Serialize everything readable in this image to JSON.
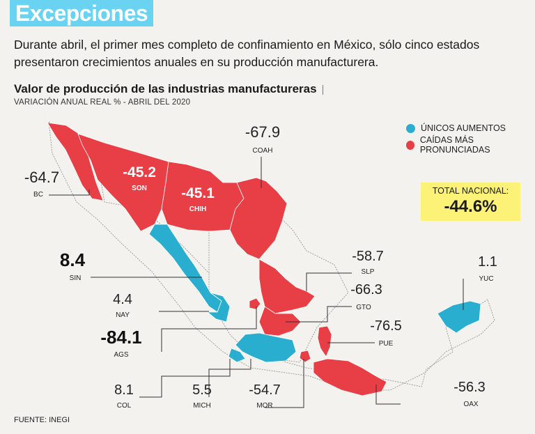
{
  "header": {
    "title": "Excepciones",
    "intro": "Durante abril, el primer mes completo de confinamiento en México, sólo cinco estados presentaron crecimientos anuales en su producción manufacturera."
  },
  "chart": {
    "title": "Valor de producción de las industrias manufactureras",
    "subtitle": "VARIACIÓN ANUAL REAL % - ABRIL DEL 2020",
    "source": "FUENTE: INEGI"
  },
  "legend": {
    "increase_label": "ÚNICOS AUMENTOS",
    "decrease_label": "CAÍDAS MÁS PRONUNCIADAS",
    "increase_color": "#2aaed0",
    "decrease_color": "#e83e45"
  },
  "total": {
    "label": "TOTAL NACIONAL:",
    "value": "-44.6%"
  },
  "states": {
    "bc": {
      "code": "BC",
      "value": "-64.7"
    },
    "son": {
      "code": "SON",
      "value": "-45.2"
    },
    "chih": {
      "code": "CHIH",
      "value": "-45.1"
    },
    "coah": {
      "code": "COAH",
      "value": "-67.9"
    },
    "sin": {
      "code": "SIN",
      "value": "8.4"
    },
    "nay": {
      "code": "NAY",
      "value": "4.4"
    },
    "ags": {
      "code": "AGS",
      "value": "-84.1"
    },
    "col": {
      "code": "COL",
      "value": "8.1"
    },
    "mich": {
      "code": "MICH",
      "value": "5.5"
    },
    "mor": {
      "code": "MOR",
      "value": "-54.7"
    },
    "slp": {
      "code": "SLP",
      "value": "-58.7"
    },
    "gto": {
      "code": "GTO",
      "value": "-66.3"
    },
    "pue": {
      "code": "PUE",
      "value": "-76.5"
    },
    "oax": {
      "code": "OAX",
      "value": "-56.3"
    },
    "yuc": {
      "code": "YUC",
      "value": "1.1"
    }
  }
}
